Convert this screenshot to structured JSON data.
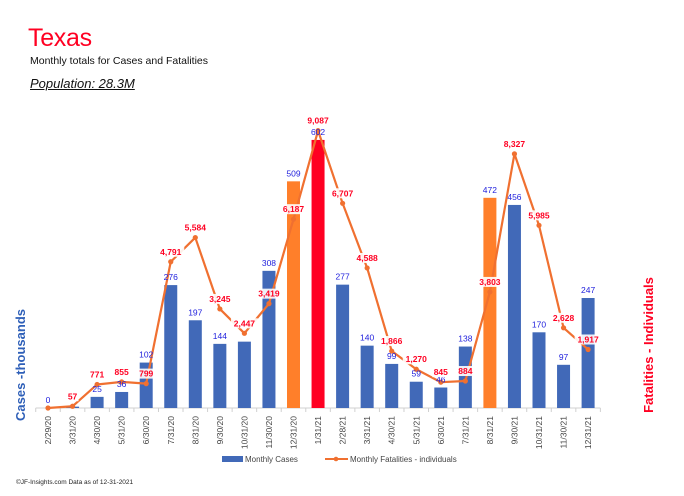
{
  "header": {
    "title": "Texas",
    "subtitle": "Monthly totals for Cases and Fatalities",
    "population": "Population: 28.3M"
  },
  "footer": "©JF-Insights.com  Data as of 12-31-2021",
  "colors": {
    "cases_bar": "#4169b8",
    "highlight_orange": "#ff7f2a",
    "highlight_red": "#ff0022",
    "fatality_line": "#f07030",
    "cases_label": "#2222dd",
    "fatality_label": "#ff0022",
    "title": "#ff0022",
    "left_axis_title": "#2e5fb8"
  },
  "chart_data": {
    "type": "bar",
    "title": "Texas",
    "subtitle": "Monthly totals for Cases and Fatalities",
    "xlabel": "",
    "ylabel": "Cases -thousands",
    "ylabel_right": "Fatalities - Individuals",
    "grid": false,
    "legend_position": "bottom",
    "categories": [
      "2/29/20",
      "3/31/20",
      "4/30/20",
      "5/31/20",
      "6/30/20",
      "7/31/20",
      "8/31/20",
      "9/30/20",
      "10/31/20",
      "11/30/20",
      "12/31/20",
      "1/31/21",
      "2/28/21",
      "3/31/21",
      "4/30/21",
      "5/31/21",
      "6/30/21",
      "7/31/21",
      "8/31/21",
      "9/30/21",
      "10/31/21",
      "11/30/21",
      "12/31/21"
    ],
    "series": [
      {
        "name": "Monthly Cases",
        "type": "bar",
        "axis": "left",
        "unit": "thousands",
        "values": [
          0,
          3,
          25,
          36,
          102,
          276,
          197,
          144,
          149,
          308,
          509,
          602,
          277,
          140,
          99,
          59,
          46,
          138,
          472,
          456,
          170,
          97,
          247
        ],
        "labels": [
          "0",
          "",
          "25",
          "36",
          "102",
          "276",
          "197",
          "144",
          "",
          "308",
          "509",
          "602",
          "277",
          "140",
          "99",
          "59",
          "46",
          "138",
          "472",
          "456",
          "170",
          "97",
          "247"
        ],
        "highlight": {
          "10": "orange",
          "11": "red",
          "18": "orange"
        }
      },
      {
        "name": "Monthly Fatalities - individuals",
        "type": "line",
        "axis": "right",
        "unit": "individuals",
        "values": [
          0,
          57,
          771,
          855,
          799,
          4791,
          5584,
          3245,
          2447,
          3419,
          6187,
          9087,
          6707,
          4588,
          1866,
          1270,
          845,
          884,
          3803,
          8327,
          5985,
          2628,
          1917
        ],
        "labels": [
          "",
          "57",
          "771",
          "855",
          "799",
          "4,791",
          "5,584",
          "3,245",
          "2,447",
          "3,419",
          "6,187",
          "9,087",
          "6,707",
          "4,588",
          "1,866",
          "1,270",
          "845",
          "884",
          "3,803",
          "8,327",
          "5,985",
          "2,628",
          "1,917"
        ]
      }
    ],
    "ylim": [
      0,
      640
    ],
    "ylim_right": [
      0,
      9600
    ]
  }
}
